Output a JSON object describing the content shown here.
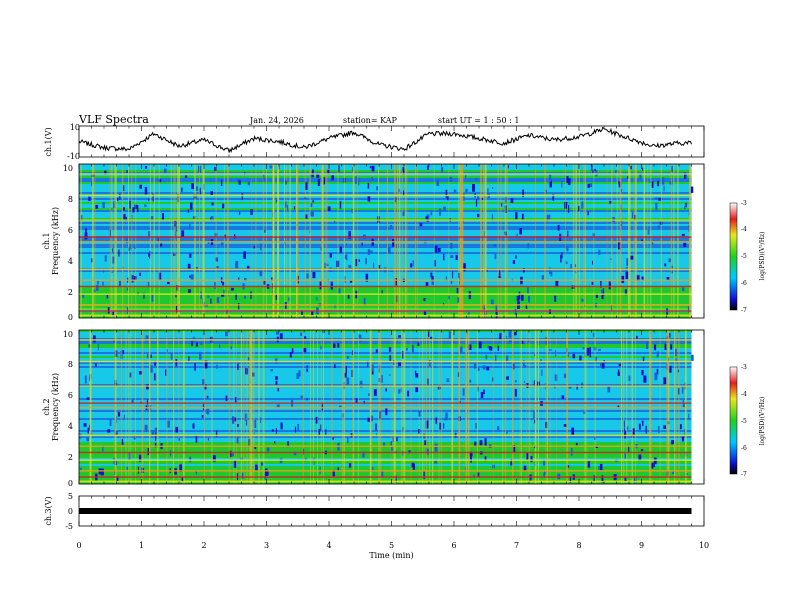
{
  "header": {
    "title": "VLF Spectra",
    "date": "Jan. 24, 2026",
    "station": "station= KAP",
    "start": "start  UT =   1 : 50 : 1"
  },
  "colors": {
    "spectrum_low": "#1010c8",
    "spectrum_mid": "#20c820",
    "spectrum_high": "#c81010",
    "signal": "#000000"
  },
  "chart_data": [
    {
      "type": "line",
      "name": "ch1-waveform",
      "ylabel": "ch.1(V)",
      "ylim": [
        -10,
        10
      ],
      "yticks": [
        "10",
        "-10"
      ],
      "xlim": [
        0,
        10
      ],
      "x": [
        0,
        0.4,
        0.8,
        1.2,
        1.6,
        2.0,
        2.4,
        2.8,
        3.2,
        3.6,
        4.0,
        4.4,
        4.8,
        5.2,
        5.6,
        6.0,
        6.4,
        6.8,
        7.2,
        7.6,
        8.0,
        8.4,
        8.8,
        9.2,
        9.6,
        9.8
      ],
      "y": [
        0,
        -4,
        -5,
        5,
        -3,
        1,
        -6,
        2,
        0,
        -4,
        2,
        6,
        -2,
        -5,
        5,
        5,
        2,
        -1,
        4,
        1,
        3,
        8,
        2,
        -3,
        -1,
        -1
      ]
    },
    {
      "type": "heatmap",
      "name": "ch1-spectrogram",
      "ylabel_line1": "ch.1",
      "ylabel_line2": "Frequency (kHz)",
      "ylim": [
        0,
        10
      ],
      "yticks": [
        "0",
        "2",
        "4",
        "6",
        "8",
        "10"
      ],
      "xlim": [
        0,
        10
      ],
      "data_end_min": 9.8,
      "colorbar": {
        "label": "log(PSD)(V²/Hz)",
        "min": -7,
        "max": -3,
        "ticks": [
          "-3",
          "-4",
          "-5",
          "-6",
          "-7"
        ]
      }
    },
    {
      "type": "heatmap",
      "name": "ch2-spectrogram",
      "ylabel_line1": "ch.2",
      "ylabel_line2": "Frequency (kHz)",
      "ylim": [
        0,
        10
      ],
      "yticks": [
        "0",
        "2",
        "4",
        "6",
        "8",
        "10"
      ],
      "xlim": [
        0,
        10
      ],
      "data_end_min": 9.8,
      "colorbar": {
        "label": "log(PSD)(V²/Hz)",
        "min": -7,
        "max": -3,
        "ticks": [
          "-3",
          "-4",
          "-5",
          "-6",
          "-7"
        ]
      }
    },
    {
      "type": "line",
      "name": "ch3-signal",
      "ylabel": "ch.3(V)",
      "ylim": [
        -5,
        5
      ],
      "yticks": [
        "5",
        "0",
        "-5"
      ],
      "xlim": [
        0,
        10
      ],
      "x": [
        0,
        9.8
      ],
      "y": [
        0,
        0
      ],
      "xlabel": "Time (min)",
      "xticks": [
        "0",
        "1",
        "2",
        "3",
        "4",
        "5",
        "6",
        "7",
        "8",
        "9",
        "10"
      ]
    }
  ]
}
